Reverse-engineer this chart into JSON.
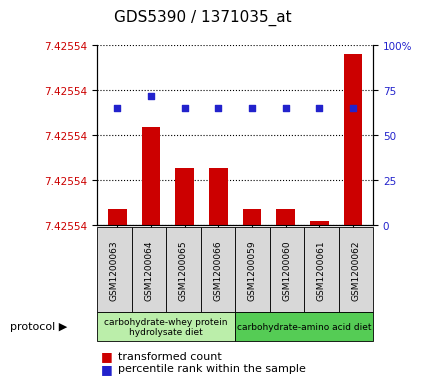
{
  "title": "GDS5390 / 1371035_at",
  "samples": [
    "GSM1200063",
    "GSM1200064",
    "GSM1200065",
    "GSM1200066",
    "GSM1200059",
    "GSM1200060",
    "GSM1200061",
    "GSM1200062"
  ],
  "bar_values": [
    7.42556,
    7.42566,
    7.42561,
    7.42561,
    7.42556,
    7.42556,
    7.425545,
    7.42575
  ],
  "percentile_values": [
    65,
    72,
    65,
    65,
    65,
    65,
    65,
    65
  ],
  "y_min": 7.42554,
  "y_max": 7.42576,
  "right_yticks": [
    0,
    25,
    50,
    75,
    100
  ],
  "bar_color": "#cc0000",
  "dot_color": "#2222cc",
  "protocol_groups": [
    {
      "label": "carbohydrate-whey protein\nhydrolysate diet",
      "start": 0,
      "end": 4,
      "color": "#bbeeaa"
    },
    {
      "label": "carbohydrate-amino acid diet",
      "start": 4,
      "end": 8,
      "color": "#55cc55"
    }
  ],
  "legend_bar_label": "transformed count",
  "legend_dot_label": "percentile rank within the sample",
  "protocol_label": "protocol",
  "left_tick_color": "#cc0000",
  "right_tick_color": "#2222cc",
  "title_fontsize": 11,
  "tick_fontsize": 7.5,
  "sample_fontsize": 6.5,
  "bg_color": "#d8d8d8",
  "legend_fontsize": 8
}
